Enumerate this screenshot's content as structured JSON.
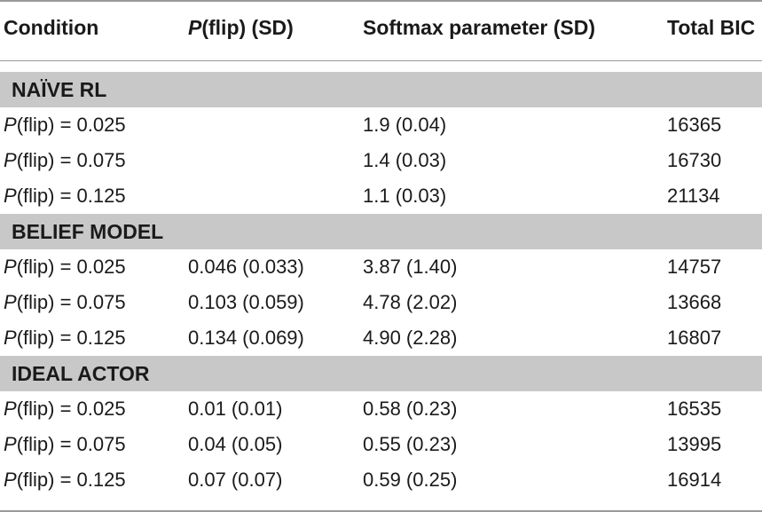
{
  "header": {
    "condition": "Condition",
    "pflip_italic": "P",
    "pflip_rest": "(flip) (SD)",
    "softmax": "Softmax parameter (SD)",
    "bic": "Total BIC"
  },
  "condition_prefix": "P",
  "sections": [
    {
      "label": "NAÏVE RL",
      "rows": [
        {
          "condition": "(flip) = 0.025",
          "pflip": "",
          "softmax": "1.9 (0.04)",
          "bic": "16365"
        },
        {
          "condition": "(flip) = 0.075",
          "pflip": "",
          "softmax": "1.4 (0.03)",
          "bic": "16730"
        },
        {
          "condition": "(flip) = 0.125",
          "pflip": "",
          "softmax": "1.1 (0.03)",
          "bic": "21134"
        }
      ]
    },
    {
      "label": "BELIEF MODEL",
      "rows": [
        {
          "condition": "(flip) = 0.025",
          "pflip": "0.046 (0.033)",
          "softmax": "3.87 (1.40)",
          "bic": "14757"
        },
        {
          "condition": "(flip) = 0.075",
          "pflip": "0.103 (0.059)",
          "softmax": "4.78 (2.02)",
          "bic": "13668"
        },
        {
          "condition": "(flip) = 0.125",
          "pflip": "0.134 (0.069)",
          "softmax": "4.90 (2.28)",
          "bic": "16807"
        }
      ]
    },
    {
      "label": "IDEAL ACTOR",
      "rows": [
        {
          "condition": "(flip) = 0.025",
          "pflip": "0.01 (0.01)",
          "softmax": "0.58 (0.23)",
          "bic": "16535"
        },
        {
          "condition": "(flip) = 0.075",
          "pflip": "0.04 (0.05)",
          "softmax": "0.55 (0.23)",
          "bic": "13995"
        },
        {
          "condition": "(flip) = 0.125",
          "pflip": "0.07 (0.07)",
          "softmax": "0.59 (0.25)",
          "bic": "16914"
        }
      ]
    }
  ]
}
